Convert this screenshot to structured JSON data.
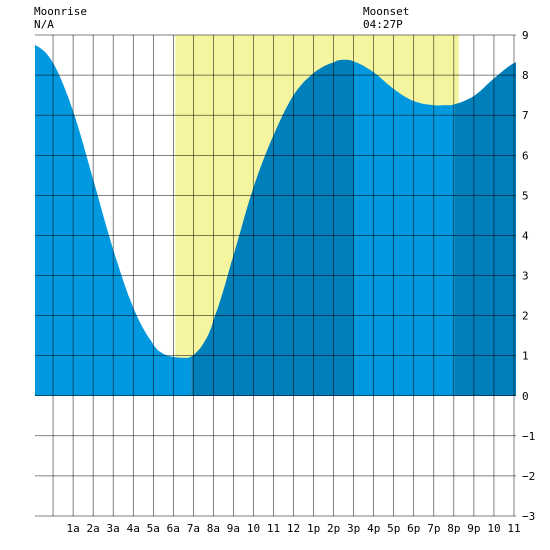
{
  "header": {
    "moonrise_label": "Moonrise",
    "moonrise_value": "N/A",
    "moonset_label": "Moonset",
    "moonset_value": "04:27P"
  },
  "colors": {
    "daylight": "#f5f5a0",
    "water_light": "#0099e0",
    "water_dark": "#0080bb",
    "grid": "#000000"
  },
  "chart_data": {
    "type": "area",
    "title": "",
    "xlabel": "",
    "ylabel": "",
    "x_unit": "hour of day",
    "xlim": [
      -0.9,
      23.1
    ],
    "ylim": [
      -3,
      9
    ],
    "x_tick_labels": [
      "1a",
      "2a",
      "3a",
      "4a",
      "5a",
      "6a",
      "7a",
      "8a",
      "9a",
      "10",
      "11",
      "12",
      "1p",
      "2p",
      "3p",
      "4p",
      "5p",
      "6p",
      "7p",
      "8p",
      "9p",
      "10",
      "11"
    ],
    "x_tick_hours": [
      1,
      2,
      3,
      4,
      5,
      6,
      7,
      8,
      9,
      10,
      11,
      12,
      13,
      14,
      15,
      16,
      17,
      18,
      19,
      20,
      21,
      22,
      23
    ],
    "y_ticks": [
      -3,
      -2,
      -1,
      0,
      1,
      2,
      3,
      4,
      5,
      6,
      7,
      8,
      9
    ],
    "grid": true,
    "daylight_hours": [
      6.1,
      20.25
    ],
    "shading_boundaries_hours": [
      6.9,
      15.0,
      20.05
    ],
    "series": [
      {
        "x": [
          -0.9,
          0,
          1,
          2,
          3,
          4,
          5,
          5.5,
          6,
          6.5,
          6.9,
          7.5,
          8,
          9,
          10,
          11,
          12,
          13,
          14,
          14.5,
          15,
          16,
          17,
          18,
          19,
          19.5,
          20,
          21,
          22,
          23.1
        ],
        "y": [
          8.75,
          8.3,
          7.1,
          5.4,
          3.65,
          2.2,
          1.3,
          1.05,
          0.97,
          0.95,
          0.98,
          1.3,
          1.9,
          3.5,
          5.2,
          6.5,
          7.5,
          8.05,
          8.32,
          8.38,
          8.34,
          8.07,
          7.65,
          7.35,
          7.25,
          7.25,
          7.27,
          7.48,
          7.92,
          8.32
        ]
      }
    ]
  }
}
